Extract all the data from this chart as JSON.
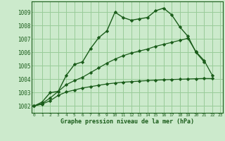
{
  "xlabel": "Graphe pression niveau de la mer (hPa)",
  "bg_color": "#cceacc",
  "grid_color": "#99cc99",
  "line_color": "#1a5c1a",
  "ylim": [
    1001.5,
    1009.8
  ],
  "xlim": [
    -0.3,
    23.3
  ],
  "yticks": [
    1002,
    1003,
    1004,
    1005,
    1006,
    1007,
    1008,
    1009
  ],
  "xticks": [
    0,
    1,
    2,
    3,
    4,
    5,
    6,
    7,
    8,
    9,
    10,
    11,
    12,
    13,
    14,
    15,
    16,
    17,
    18,
    19,
    20,
    21,
    22,
    23
  ],
  "series1_x": [
    0,
    1,
    2,
    3,
    4,
    5,
    6,
    7,
    8,
    9,
    10,
    11,
    12,
    13,
    14,
    15,
    16,
    17,
    18,
    19,
    20,
    21
  ],
  "series1_y": [
    1002.0,
    1002.3,
    1003.0,
    1003.1,
    1004.3,
    1005.1,
    1005.3,
    1006.3,
    1007.1,
    1007.6,
    1009.0,
    1008.6,
    1008.4,
    1008.5,
    1008.6,
    1009.1,
    1009.3,
    1008.8,
    1007.9,
    1007.2,
    1006.0,
    1005.3
  ],
  "series2_x": [
    0,
    1,
    2,
    3,
    4,
    5,
    6,
    7,
    8,
    9,
    10,
    11,
    12,
    13,
    14,
    15,
    16,
    17,
    18,
    19,
    20,
    21,
    22
  ],
  "series2_y": [
    1002.0,
    1002.15,
    1002.4,
    1002.8,
    1003.05,
    1003.2,
    1003.35,
    1003.45,
    1003.55,
    1003.65,
    1003.72,
    1003.78,
    1003.82,
    1003.86,
    1003.9,
    1003.93,
    1003.96,
    1003.98,
    1004.0,
    1004.02,
    1004.04,
    1004.06,
    1004.05
  ],
  "series3_x": [
    0,
    1,
    2,
    3,
    4,
    5,
    6,
    7,
    8,
    9,
    10,
    11,
    12,
    13,
    14,
    15,
    16,
    17,
    18,
    19,
    20,
    21,
    22
  ],
  "series3_y": [
    1002.0,
    1002.2,
    1002.6,
    1003.1,
    1003.6,
    1003.9,
    1004.15,
    1004.5,
    1004.85,
    1005.2,
    1005.5,
    1005.75,
    1005.95,
    1006.1,
    1006.25,
    1006.45,
    1006.6,
    1006.75,
    1006.9,
    1007.05,
    1006.05,
    1005.4,
    1004.3
  ]
}
